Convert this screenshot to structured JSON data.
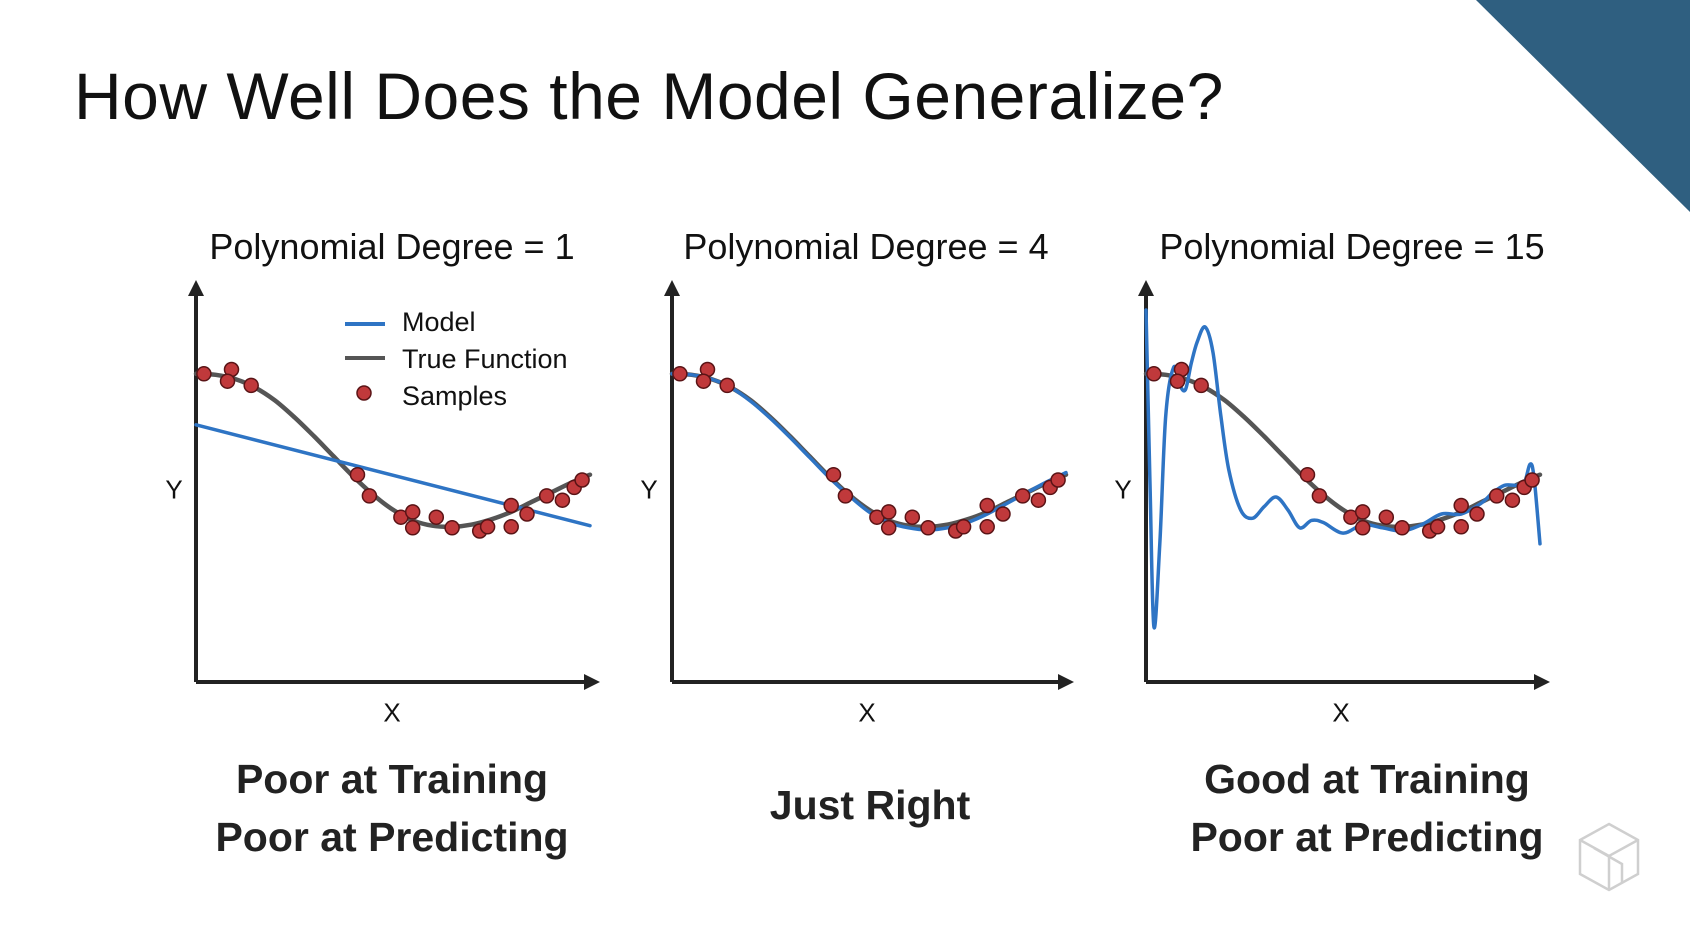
{
  "slide": {
    "title": "How Well Does the Model Generalize?",
    "accent_color": "#2f5f80",
    "logo_icon": "cube-outline-icon"
  },
  "legend": {
    "model": "Model",
    "true_function": "True Function",
    "samples": "Samples"
  },
  "colors": {
    "model": "#2e74c4",
    "true_function": "#555555",
    "sample_fill": "#c0393b",
    "sample_stroke": "#5a1416",
    "axes": "#222222"
  },
  "panels": [
    {
      "title": "Polynomial Degree = 1",
      "xlabel": "X",
      "ylabel": "Y",
      "caption": [
        "Poor at Training",
        "Poor at Predicting"
      ]
    },
    {
      "title": "Polynomial Degree = 4",
      "xlabel": "X",
      "ylabel": "Y",
      "caption": [
        "Just Right"
      ]
    },
    {
      "title": "Polynomial Degree = 15",
      "xlabel": "X",
      "ylabel": "Y",
      "caption": [
        "Good at Training",
        "Poor at Predicting"
      ]
    }
  ],
  "chart_data": [
    {
      "type": "scatter",
      "title": "Polynomial Degree = 1",
      "xlabel": "X",
      "ylabel": "Y",
      "xlim": [
        0,
        1
      ],
      "ylim": [
        -1.6,
        1.6
      ],
      "legend_placement": "top-right",
      "samples": {
        "x": [
          0.02,
          0.09,
          0.08,
          0.14,
          0.41,
          0.44,
          0.52,
          0.55,
          0.55,
          0.61,
          0.65,
          0.72,
          0.74,
          0.8,
          0.8,
          0.84,
          0.89,
          0.93,
          0.96,
          0.98
        ],
        "y": [
          1.0,
          1.04,
          0.93,
          0.89,
          0.05,
          -0.15,
          -0.35,
          -0.3,
          -0.45,
          -0.35,
          -0.45,
          -0.48,
          -0.44,
          -0.24,
          -0.44,
          -0.32,
          -0.15,
          -0.19,
          -0.07,
          0.0
        ]
      },
      "series": [
        {
          "name": "Model",
          "kind": "line",
          "x": [
            0.0,
            1.0
          ],
          "y": [
            0.52,
            -0.43
          ]
        },
        {
          "name": "True Function",
          "kind": "line",
          "x": [
            0.0,
            0.05,
            0.1,
            0.15,
            0.2,
            0.25,
            0.3,
            0.35,
            0.4,
            0.45,
            0.5,
            0.55,
            0.6,
            0.65,
            0.7,
            0.75,
            0.8,
            0.85,
            0.9,
            0.95,
            1.0
          ],
          "y": [
            1.0,
            0.99,
            0.95,
            0.87,
            0.75,
            0.59,
            0.41,
            0.22,
            0.03,
            -0.14,
            -0.28,
            -0.38,
            -0.43,
            -0.44,
            -0.42,
            -0.37,
            -0.3,
            -0.21,
            -0.12,
            -0.03,
            0.05
          ]
        }
      ]
    },
    {
      "type": "scatter",
      "title": "Polynomial Degree = 4",
      "xlabel": "X",
      "ylabel": "Y",
      "xlim": [
        0,
        1
      ],
      "ylim": [
        -1.6,
        1.6
      ],
      "samples": {
        "x": [
          0.02,
          0.09,
          0.08,
          0.14,
          0.41,
          0.44,
          0.52,
          0.55,
          0.55,
          0.61,
          0.65,
          0.72,
          0.74,
          0.8,
          0.8,
          0.84,
          0.89,
          0.93,
          0.96,
          0.98
        ],
        "y": [
          1.0,
          1.04,
          0.93,
          0.89,
          0.05,
          -0.15,
          -0.35,
          -0.3,
          -0.45,
          -0.35,
          -0.45,
          -0.48,
          -0.44,
          -0.24,
          -0.44,
          -0.32,
          -0.15,
          -0.19,
          -0.07,
          0.0
        ]
      },
      "series": [
        {
          "name": "Model",
          "kind": "line",
          "x": [
            0.0,
            0.05,
            0.1,
            0.15,
            0.2,
            0.25,
            0.3,
            0.35,
            0.4,
            0.45,
            0.5,
            0.55,
            0.6,
            0.65,
            0.7,
            0.75,
            0.8,
            0.85,
            0.9,
            0.95,
            1.0
          ],
          "y": [
            1.0,
            0.99,
            0.95,
            0.87,
            0.74,
            0.58,
            0.4,
            0.21,
            0.02,
            -0.15,
            -0.3,
            -0.4,
            -0.45,
            -0.47,
            -0.45,
            -0.4,
            -0.32,
            -0.22,
            -0.12,
            -0.02,
            0.07
          ]
        },
        {
          "name": "True Function",
          "kind": "line",
          "x": [
            0.0,
            0.05,
            0.1,
            0.15,
            0.2,
            0.25,
            0.3,
            0.35,
            0.4,
            0.45,
            0.5,
            0.55,
            0.6,
            0.65,
            0.7,
            0.75,
            0.8,
            0.85,
            0.9,
            0.95,
            1.0
          ],
          "y": [
            1.0,
            0.99,
            0.95,
            0.87,
            0.75,
            0.59,
            0.41,
            0.22,
            0.03,
            -0.14,
            -0.28,
            -0.38,
            -0.43,
            -0.44,
            -0.42,
            -0.37,
            -0.3,
            -0.21,
            -0.12,
            -0.03,
            0.05
          ]
        }
      ]
    },
    {
      "type": "scatter",
      "title": "Polynomial Degree = 15",
      "xlabel": "X",
      "ylabel": "Y",
      "xlim": [
        0,
        1
      ],
      "ylim": [
        -1.6,
        1.6
      ],
      "samples": {
        "x": [
          0.02,
          0.09,
          0.08,
          0.14,
          0.41,
          0.44,
          0.52,
          0.55,
          0.55,
          0.61,
          0.65,
          0.72,
          0.74,
          0.8,
          0.8,
          0.84,
          0.89,
          0.93,
          0.96,
          0.98
        ],
        "y": [
          1.0,
          1.04,
          0.93,
          0.89,
          0.05,
          -0.15,
          -0.35,
          -0.3,
          -0.45,
          -0.35,
          -0.45,
          -0.48,
          -0.44,
          -0.24,
          -0.44,
          -0.32,
          -0.15,
          -0.19,
          -0.07,
          0.0
        ]
      },
      "series": [
        {
          "name": "Model",
          "kind": "line",
          "x": [
            0.0,
            0.01,
            0.02,
            0.035,
            0.05,
            0.07,
            0.085,
            0.1,
            0.115,
            0.13,
            0.15,
            0.17,
            0.19,
            0.21,
            0.24,
            0.27,
            0.3,
            0.33,
            0.36,
            0.39,
            0.42,
            0.45,
            0.5,
            0.55,
            0.6,
            0.65,
            0.7,
            0.75,
            0.8,
            0.85,
            0.88,
            0.91,
            0.94,
            0.96,
            0.975,
            0.985,
            1.0
          ],
          "y": [
            1.6,
            0.0,
            -1.38,
            -0.6,
            0.6,
            1.06,
            0.9,
            0.85,
            1.1,
            1.3,
            1.44,
            1.2,
            0.6,
            0.1,
            -0.28,
            -0.36,
            -0.25,
            -0.16,
            -0.28,
            -0.45,
            -0.38,
            -0.4,
            -0.5,
            -0.42,
            -0.45,
            -0.48,
            -0.42,
            -0.32,
            -0.32,
            -0.22,
            -0.12,
            -0.05,
            -0.05,
            -0.03,
            0.15,
            0.02,
            -0.6
          ]
        },
        {
          "name": "True Function",
          "kind": "line",
          "x": [
            0.0,
            0.05,
            0.1,
            0.15,
            0.2,
            0.25,
            0.3,
            0.35,
            0.4,
            0.45,
            0.5,
            0.55,
            0.6,
            0.65,
            0.7,
            0.75,
            0.8,
            0.85,
            0.9,
            0.95,
            1.0
          ],
          "y": [
            1.0,
            0.99,
            0.95,
            0.87,
            0.75,
            0.59,
            0.41,
            0.22,
            0.03,
            -0.14,
            -0.28,
            -0.38,
            -0.43,
            -0.44,
            -0.42,
            -0.37,
            -0.3,
            -0.21,
            -0.12,
            -0.03,
            0.05
          ]
        }
      ]
    }
  ]
}
